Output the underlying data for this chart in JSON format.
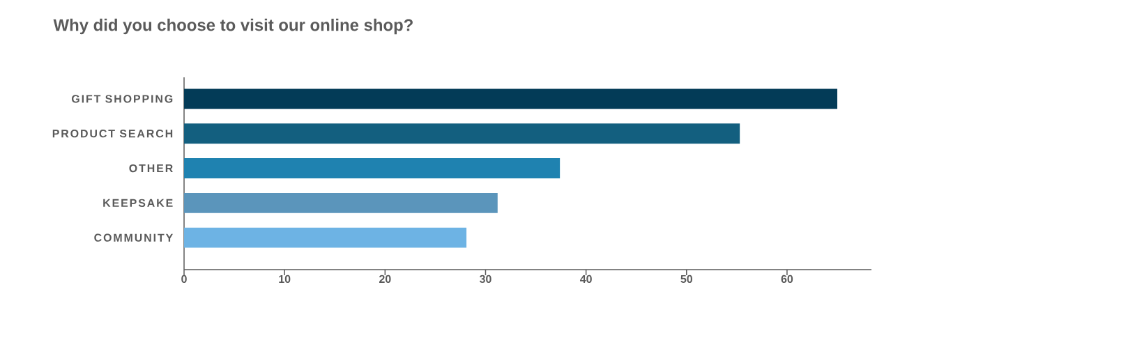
{
  "chart_data": {
    "type": "bar",
    "orientation": "horizontal",
    "title": "Why did you choose to visit our online shop?",
    "categories": [
      "GIFT SHOPPING",
      "PRODUCT SEARCH",
      "OTHER",
      "KEEPSAKE",
      "COMMUNITY"
    ],
    "values": [
      65,
      55.3,
      37.4,
      31.2,
      28.1
    ],
    "colors": [
      "#033b57",
      "#135f7f",
      "#1f82b0",
      "#5b95bb",
      "#6db3e4"
    ],
    "xlim": [
      0,
      68.4
    ],
    "xticks": [
      0,
      10,
      20,
      30,
      40,
      50,
      60
    ],
    "grid": false
  }
}
